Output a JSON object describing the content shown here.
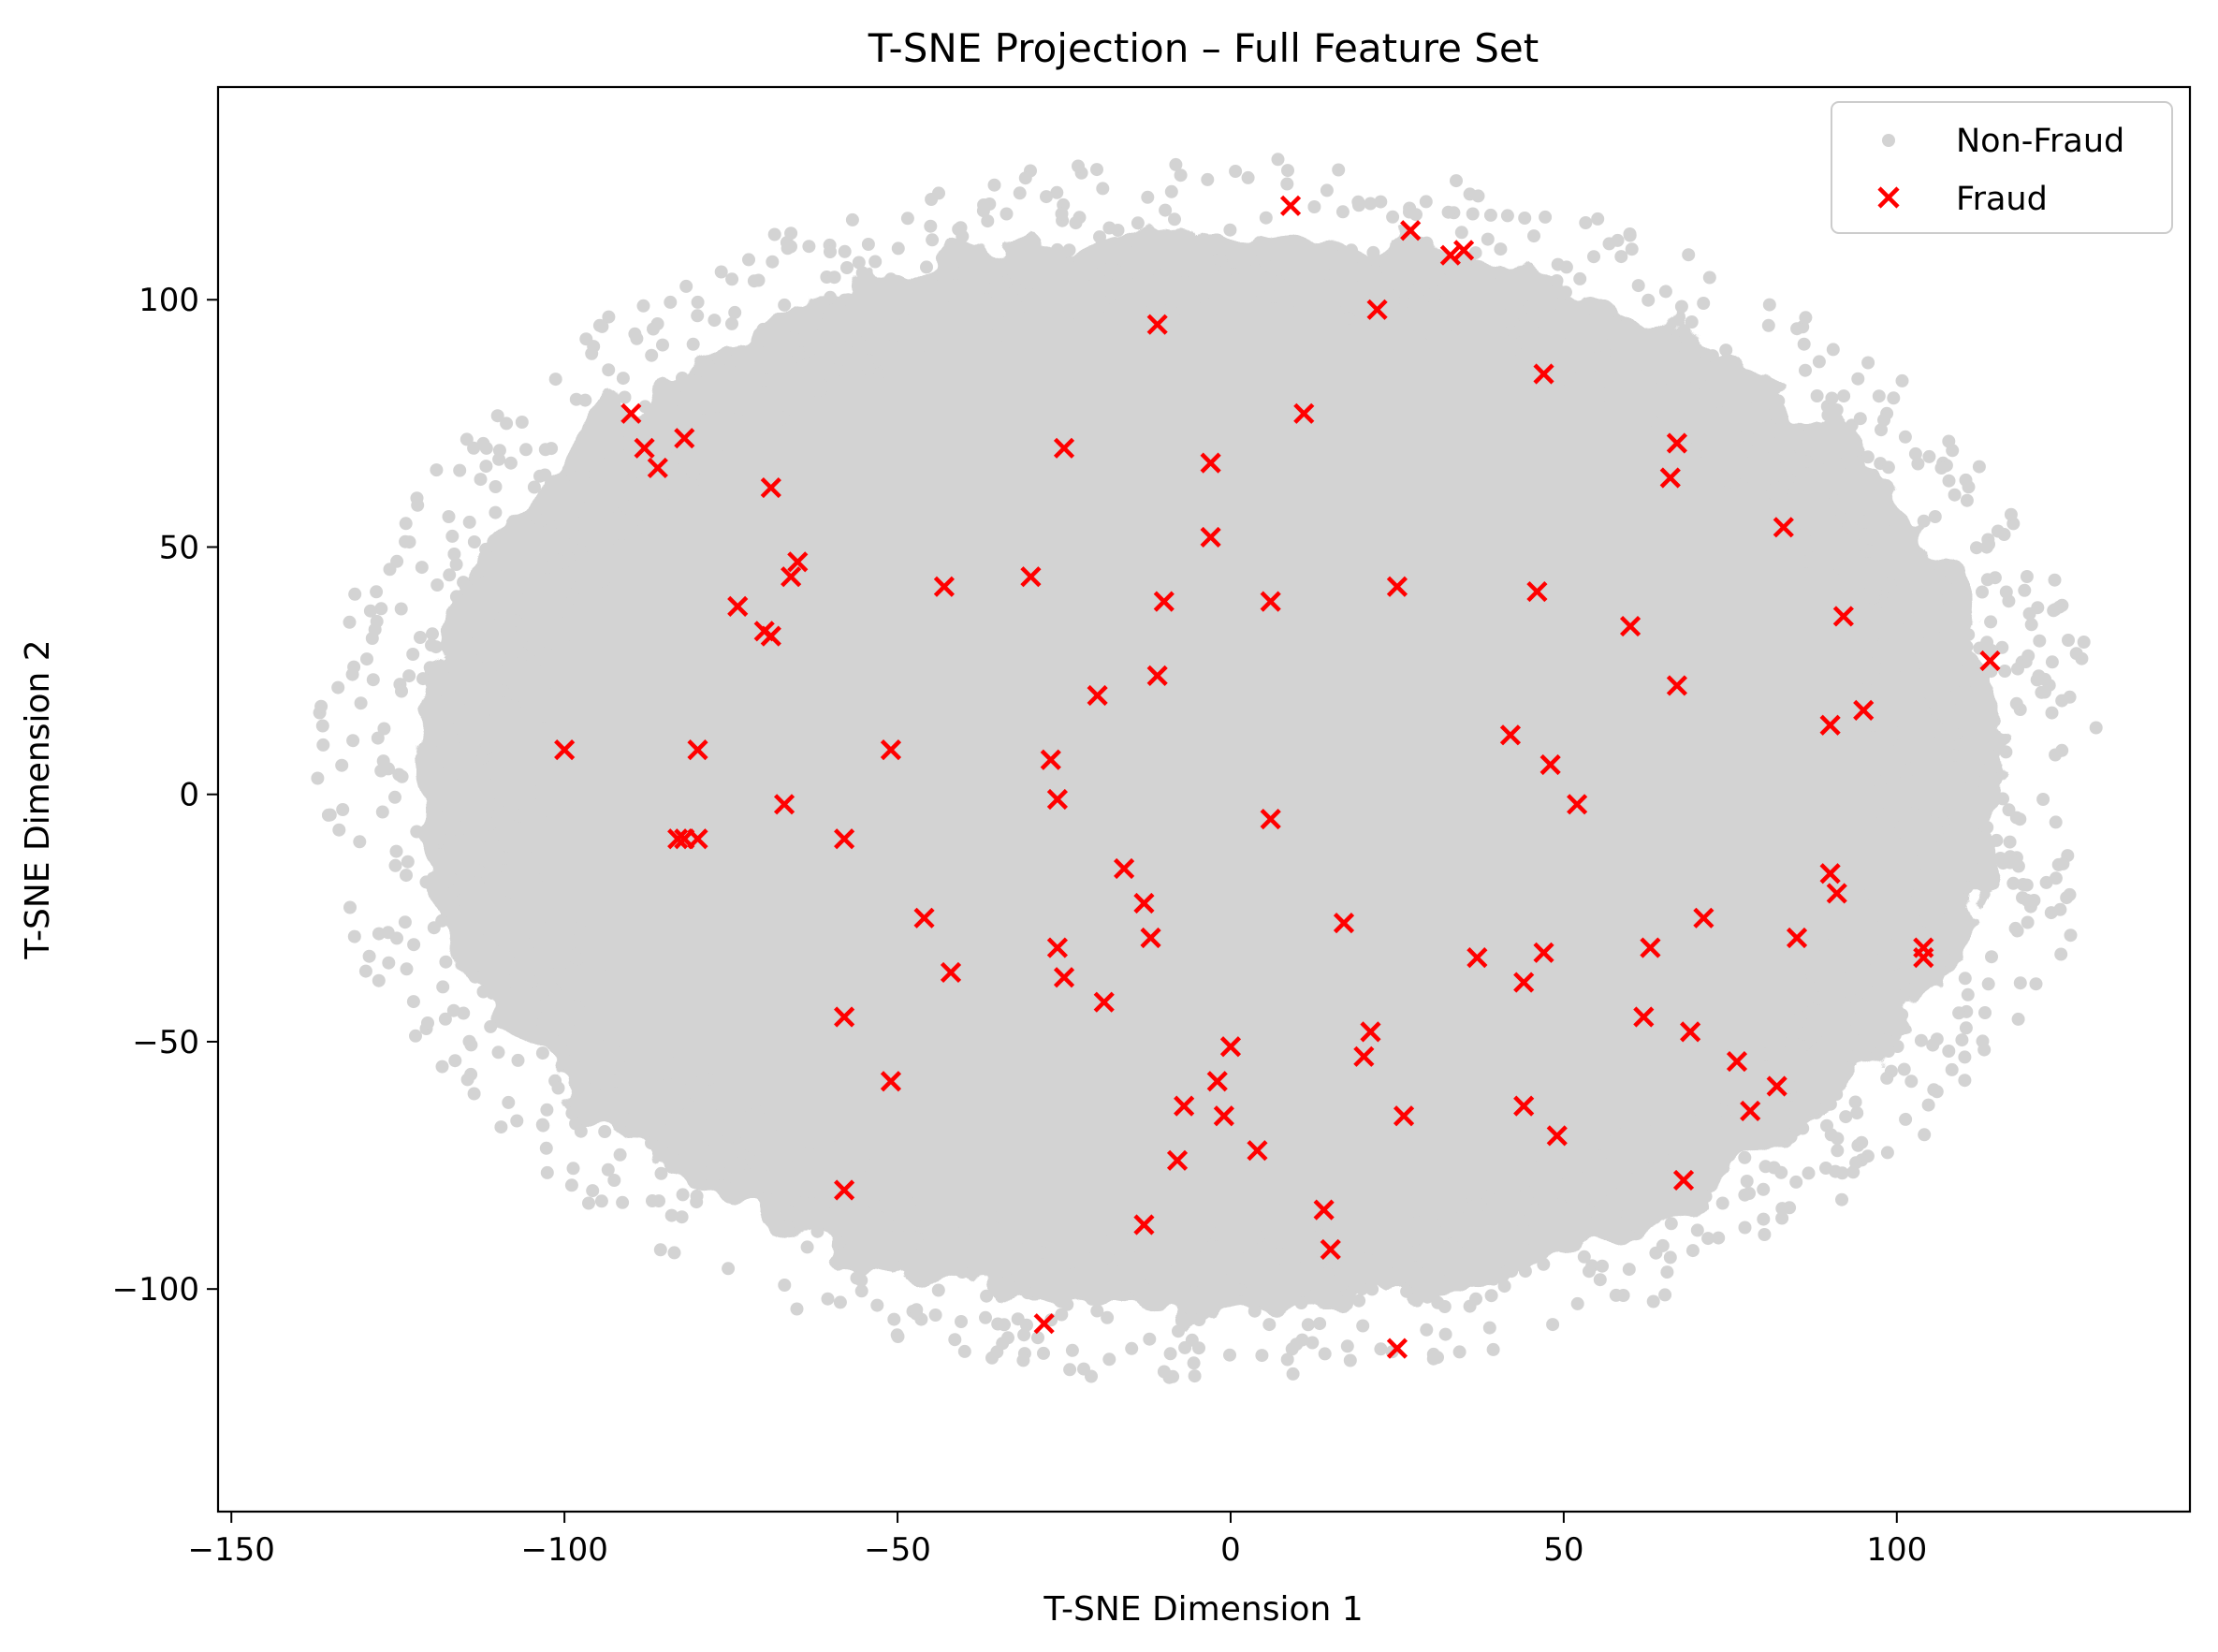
{
  "chart_data": {
    "type": "scatter",
    "title": "T-SNE Projection – Full Feature Set",
    "xlabel": "T-SNE Dimension 1",
    "ylabel": "T-SNE Dimension 2",
    "xlim": [
      -152,
      144
    ],
    "ylim": [
      -145,
      143
    ],
    "x_ticks": [
      {
        "value": -150,
        "label": "−150"
      },
      {
        "value": -100,
        "label": "−100"
      },
      {
        "value": -50,
        "label": "−50"
      },
      {
        "value": 0,
        "label": "0"
      },
      {
        "value": 50,
        "label": "50"
      },
      {
        "value": 100,
        "label": "100"
      }
    ],
    "y_ticks": [
      {
        "value": 100,
        "label": "100"
      },
      {
        "value": 50,
        "label": "50"
      },
      {
        "value": 0,
        "label": "0"
      },
      {
        "value": -50,
        "label": "−50"
      },
      {
        "value": -100,
        "label": "−100"
      }
    ],
    "grid": false,
    "legend_position": "top-right",
    "series": [
      {
        "name": "Non-Fraud",
        "marker": "circle",
        "color": "#d3d3d3",
        "note_region": {
          "center": [
            -3,
            5
          ],
          "radius_x": 128,
          "radius_y": 118
        }
      },
      {
        "name": "Fraud",
        "marker": "x",
        "color": "#ff0000",
        "points": [
          [
            9,
            119
          ],
          [
            27,
            114
          ],
          [
            33,
            109
          ],
          [
            35,
            110
          ],
          [
            22,
            98
          ],
          [
            -11,
            95
          ],
          [
            47,
            85
          ],
          [
            11,
            77
          ],
          [
            -90,
            77
          ],
          [
            -88,
            70
          ],
          [
            -82,
            72
          ],
          [
            -86,
            66
          ],
          [
            -25,
            70
          ],
          [
            67,
            71
          ],
          [
            66,
            64
          ],
          [
            -3,
            67
          ],
          [
            -69,
            62
          ],
          [
            -3,
            52
          ],
          [
            83,
            54
          ],
          [
            -65,
            47
          ],
          [
            -66,
            44
          ],
          [
            -43,
            42
          ],
          [
            -30,
            44
          ],
          [
            25,
            42
          ],
          [
            46,
            41
          ],
          [
            -10,
            39
          ],
          [
            6,
            39
          ],
          [
            -74,
            38
          ],
          [
            -70,
            33
          ],
          [
            -69,
            32
          ],
          [
            60,
            34
          ],
          [
            92,
            36
          ],
          [
            114,
            27
          ],
          [
            -11,
            24
          ],
          [
            67,
            22
          ],
          [
            -20,
            20
          ],
          [
            95,
            17
          ],
          [
            90,
            14
          ],
          [
            42,
            12
          ],
          [
            -100,
            9
          ],
          [
            -80,
            9
          ],
          [
            -51,
            9
          ],
          [
            -27,
            7
          ],
          [
            48,
            6
          ],
          [
            -26,
            -1
          ],
          [
            -67,
            -2
          ],
          [
            52,
            -2
          ],
          [
            6,
            -5
          ],
          [
            -83,
            -9
          ],
          [
            -82,
            -9
          ],
          [
            -80,
            -9
          ],
          [
            -58,
            -9
          ],
          [
            -16,
            -15
          ],
          [
            90,
            -16
          ],
          [
            91,
            -20
          ],
          [
            -13,
            -22
          ],
          [
            -46,
            -25
          ],
          [
            17,
            -26
          ],
          [
            71,
            -25
          ],
          [
            -12,
            -29
          ],
          [
            85,
            -29
          ],
          [
            63,
            -31
          ],
          [
            -26,
            -31
          ],
          [
            104,
            -31
          ],
          [
            104,
            -33
          ],
          [
            37,
            -33
          ],
          [
            47,
            -32
          ],
          [
            -42,
            -36
          ],
          [
            -25,
            -37
          ],
          [
            44,
            -38
          ],
          [
            -19,
            -42
          ],
          [
            -58,
            -45
          ],
          [
            62,
            -45
          ],
          [
            21,
            -48
          ],
          [
            69,
            -48
          ],
          [
            0,
            -51
          ],
          [
            20,
            -53
          ],
          [
            76,
            -54
          ],
          [
            -51,
            -58
          ],
          [
            -2,
            -58
          ],
          [
            82,
            -59
          ],
          [
            -7,
            -63
          ],
          [
            44,
            -63
          ],
          [
            -1,
            -65
          ],
          [
            26,
            -65
          ],
          [
            78,
            -64
          ],
          [
            49,
            -69
          ],
          [
            4,
            -72
          ],
          [
            -8,
            -74
          ],
          [
            68,
            -78
          ],
          [
            -58,
            -80
          ],
          [
            -13,
            -87
          ],
          [
            14,
            -84
          ],
          [
            15,
            -92
          ],
          [
            -28,
            -107
          ],
          [
            25,
            -112
          ]
        ]
      }
    ]
  }
}
